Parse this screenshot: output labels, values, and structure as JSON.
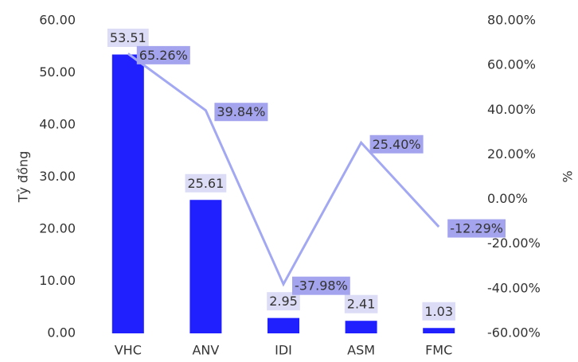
{
  "chart_data": {
    "type": "bar-line",
    "categories": [
      "VHC",
      "ANV",
      "IDI",
      "ASM",
      "FMC"
    ],
    "series": [
      {
        "type": "bar",
        "color": "#2020ff",
        "values": [
          53.51,
          25.61,
          2.95,
          2.41,
          1.03
        ]
      },
      {
        "type": "line",
        "axis": "y2",
        "color": "#a3a8f2",
        "values": [
          65.26,
          39.84,
          -37.98,
          25.4,
          -12.29
        ],
        "value_labels": [
          "65.26%",
          "39.84%",
          "-37.98%",
          "25.40%",
          "-12.29%"
        ]
      }
    ],
    "ylabel": "Tỷ đồng",
    "y2label": "%",
    "ylim": [
      0,
      60
    ],
    "yticks": [
      {
        "value": 0,
        "label": "0.00"
      },
      {
        "value": 10,
        "label": "10.00"
      },
      {
        "value": 20,
        "label": "20.00"
      },
      {
        "value": 30,
        "label": "30.00"
      },
      {
        "value": 40,
        "label": "40.00"
      },
      {
        "value": 50,
        "label": "50.00"
      },
      {
        "value": 60,
        "label": "60.00"
      }
    ],
    "y2lim": [
      -60,
      80
    ],
    "y2ticks": [
      {
        "value": -60,
        "label": "-60.00%"
      },
      {
        "value": -40,
        "label": "-40.00%"
      },
      {
        "value": -20,
        "label": "-20.00%"
      },
      {
        "value": 0,
        "label": "0.00%"
      },
      {
        "value": 20,
        "label": "20.00%"
      },
      {
        "value": 40,
        "label": "40.00%"
      },
      {
        "value": 60,
        "label": "60.00%"
      },
      {
        "value": 80,
        "label": "80.00%"
      }
    ]
  }
}
